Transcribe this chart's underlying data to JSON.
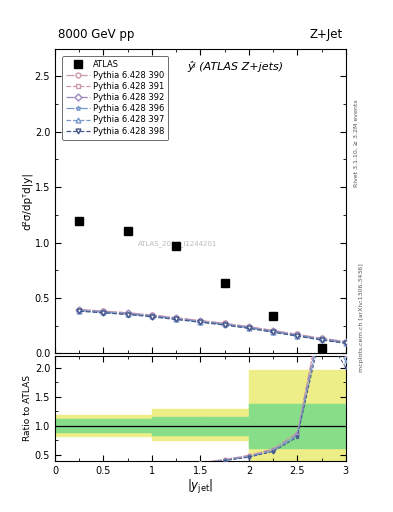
{
  "title_left": "8000 GeV pp",
  "title_right": "Z+Jet",
  "subtitle": "ŷʲ (ATLAS Z+jets)",
  "ylabel_main": "d²σ/dpᵀd|y|",
  "ylabel_ratio": "Ratio to ATLAS",
  "xlabel": "|yⱼₑₜ|",
  "right_label_top": "Rivet 3.1.10, ≥ 3.2M events",
  "right_label_bot": "mcplots.cern.ch [arXiv:1306.3436]",
  "atlas_x": [
    0.25,
    0.75,
    1.25,
    1.75,
    2.25,
    2.75
  ],
  "atlas_y": [
    1.195,
    1.1,
    0.97,
    0.635,
    0.34,
    0.045
  ],
  "pythia_x": [
    0.25,
    0.5,
    0.75,
    1.0,
    1.25,
    1.5,
    1.75,
    2.0,
    2.25,
    2.5,
    2.75,
    3.0
  ],
  "py390_y": [
    0.395,
    0.38,
    0.365,
    0.345,
    0.32,
    0.295,
    0.27,
    0.24,
    0.205,
    0.17,
    0.135,
    0.105
  ],
  "py391_y": [
    0.395,
    0.38,
    0.365,
    0.345,
    0.32,
    0.295,
    0.27,
    0.24,
    0.205,
    0.17,
    0.135,
    0.105
  ],
  "py392_y": [
    0.39,
    0.375,
    0.36,
    0.34,
    0.315,
    0.29,
    0.265,
    0.235,
    0.2,
    0.165,
    0.13,
    0.1
  ],
  "py396_y": [
    0.385,
    0.37,
    0.355,
    0.335,
    0.31,
    0.285,
    0.26,
    0.23,
    0.195,
    0.16,
    0.125,
    0.095
  ],
  "py397_y": [
    0.385,
    0.37,
    0.355,
    0.335,
    0.31,
    0.285,
    0.26,
    0.23,
    0.195,
    0.16,
    0.125,
    0.095
  ],
  "py398_y": [
    0.38,
    0.365,
    0.35,
    0.33,
    0.305,
    0.28,
    0.255,
    0.225,
    0.19,
    0.155,
    0.12,
    0.09
  ],
  "ratio_bins": [
    0.0,
    0.5,
    1.0,
    1.5,
    2.0,
    2.5,
    3.01
  ],
  "ratio_green_lo": [
    0.9,
    0.9,
    0.85,
    0.85,
    0.62,
    0.62
  ],
  "ratio_green_hi": [
    1.12,
    1.12,
    1.15,
    1.15,
    1.38,
    1.38
  ],
  "ratio_yellow_lo": [
    0.83,
    0.83,
    0.75,
    0.75,
    0.4,
    0.4
  ],
  "ratio_yellow_hi": [
    1.18,
    1.18,
    1.28,
    1.28,
    1.95,
    1.95
  ],
  "versions": [
    {
      "id": "390",
      "marker": "o",
      "ls": "-.",
      "color": "#cc99aa",
      "mfc": "white",
      "label": "Pythia 6.428 390"
    },
    {
      "id": "391",
      "marker": "s",
      "ls": "--",
      "color": "#cc99aa",
      "mfc": "white",
      "label": "Pythia 6.428 391"
    },
    {
      "id": "392",
      "marker": "D",
      "ls": "-.",
      "color": "#9988bb",
      "mfc": "white",
      "label": "Pythia 6.428 392"
    },
    {
      "id": "396",
      "marker": "*",
      "ls": "-.",
      "color": "#7799cc",
      "mfc": "white",
      "label": "Pythia 6.428 396"
    },
    {
      "id": "397",
      "marker": "^",
      "ls": "--",
      "color": "#7799cc",
      "mfc": "white",
      "label": "Pythia 6.428 397"
    },
    {
      "id": "398",
      "marker": "v",
      "ls": "--",
      "color": "#445588",
      "mfc": "white",
      "label": "Pythia 6.428 398"
    }
  ],
  "xlim": [
    0,
    3.0
  ],
  "ylim_main": [
    0,
    2.75
  ],
  "ylim_ratio": [
    0.4,
    2.2
  ],
  "watermark": "ATLAS_2014_I1244201"
}
